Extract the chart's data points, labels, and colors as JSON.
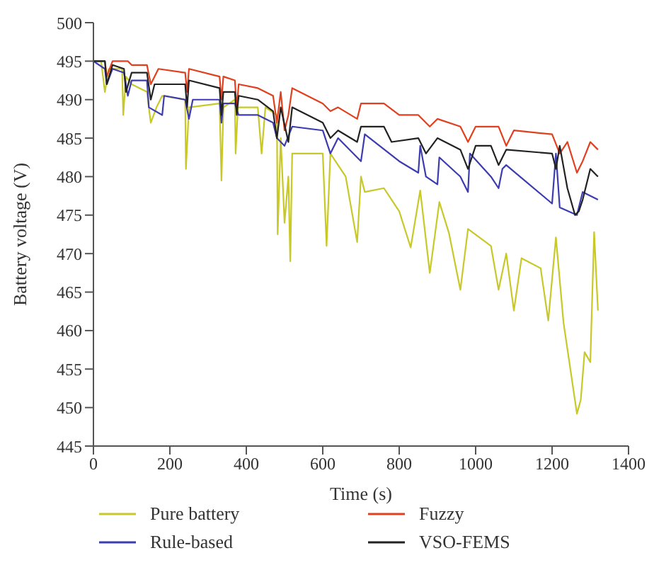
{
  "chart_data": {
    "type": "line",
    "xlabel": "Time (s)",
    "ylabel": "Battery voltage (V)",
    "xlim": [
      0,
      1400
    ],
    "xticks": [
      0,
      200,
      400,
      600,
      800,
      1000,
      1200,
      1400
    ],
    "ylim": [
      445,
      500
    ],
    "yticks": [
      445,
      450,
      455,
      460,
      465,
      470,
      475,
      480,
      485,
      490,
      495,
      500
    ],
    "grid": false,
    "legend": "bottom",
    "marker": "none",
    "series": [
      {
        "name": "Pure battery",
        "color": "#c8c828",
        "x": [
          0,
          20,
          30,
          40,
          75,
          78,
          85,
          100,
          140,
          150,
          165,
          180,
          240,
          242,
          250,
          330,
          335,
          340,
          370,
          372,
          378,
          430,
          440,
          450,
          480,
          482,
          490,
          500,
          510,
          515,
          520,
          600,
          610,
          620,
          660,
          690,
          700,
          710,
          760,
          800,
          830,
          855,
          880,
          905,
          930,
          960,
          980,
          1040,
          1060,
          1080,
          1100,
          1120,
          1170,
          1190,
          1210,
          1230,
          1265,
          1275,
          1285,
          1300,
          1310,
          1320
        ],
        "values": [
          495,
          495,
          491,
          494,
          494,
          488,
          493,
          492,
          491,
          487,
          489,
          490.5,
          490,
          481,
          489,
          489.5,
          479.5,
          489,
          490,
          483,
          489,
          489,
          483,
          489,
          488,
          472.5,
          485,
          474,
          480,
          469,
          483,
          483,
          471,
          483,
          480,
          471.5,
          480,
          478,
          478.5,
          475.5,
          470.8,
          478.2,
          467.5,
          476.7,
          472.7,
          465.3,
          473.2,
          471,
          465.3,
          470,
          462.6,
          469.4,
          468.1,
          461.3,
          472.1,
          461,
          449.2,
          451,
          457.2,
          455.9,
          472.8,
          462.6
        ]
      },
      {
        "name": "Fuzzy",
        "color": "#e0401e",
        "x": [
          0,
          30,
          35,
          50,
          90,
          100,
          140,
          150,
          170,
          240,
          245,
          250,
          330,
          335,
          340,
          370,
          375,
          380,
          430,
          470,
          480,
          490,
          500,
          510,
          520,
          600,
          620,
          640,
          690,
          700,
          760,
          800,
          850,
          880,
          900,
          960,
          980,
          1000,
          1060,
          1080,
          1100,
          1200,
          1220,
          1240,
          1265,
          1280,
          1300,
          1320
        ],
        "values": [
          495,
          495,
          493,
          495,
          495,
          494.5,
          494.5,
          492,
          494,
          493.5,
          491,
          494,
          493,
          490,
          493,
          492.5,
          489,
          492,
          491.5,
          490.5,
          487,
          491,
          486,
          488,
          491.5,
          489.5,
          488.5,
          489,
          487.5,
          489.5,
          489.5,
          488,
          488,
          486.5,
          487.5,
          486.5,
          484.5,
          486.5,
          486.5,
          484,
          486,
          485.5,
          483,
          484.5,
          480.5,
          482,
          484.5,
          483.5
        ]
      },
      {
        "name": "Rule-based",
        "color": "#3c3cb0",
        "x": [
          0,
          30,
          35,
          50,
          80,
          90,
          100,
          140,
          145,
          180,
          185,
          240,
          250,
          260,
          330,
          335,
          340,
          370,
          380,
          430,
          470,
          480,
          500,
          520,
          600,
          620,
          640,
          700,
          710,
          800,
          850,
          855,
          870,
          900,
          905,
          960,
          980,
          985,
          1040,
          1060,
          1070,
          1080,
          1200,
          1210,
          1220,
          1265,
          1280,
          1320
        ],
        "values": [
          495,
          494,
          492,
          494,
          493.5,
          490.5,
          492.5,
          492.5,
          489,
          488,
          490.5,
          490,
          487.5,
          490,
          490,
          487,
          489.5,
          489.5,
          488,
          488,
          487,
          485,
          484,
          486.5,
          486,
          483,
          485,
          482,
          485.5,
          482,
          480.5,
          484,
          480,
          479,
          482.5,
          480,
          478,
          483,
          480,
          478.5,
          481,
          481.5,
          476.5,
          483,
          476,
          475,
          478,
          477
        ]
      },
      {
        "name": "VSO-FEMS",
        "color": "#222222",
        "x": [
          0,
          30,
          35,
          50,
          80,
          85,
          100,
          140,
          150,
          160,
          240,
          245,
          250,
          330,
          335,
          340,
          370,
          375,
          380,
          430,
          470,
          480,
          490,
          510,
          520,
          600,
          620,
          640,
          690,
          700,
          760,
          780,
          850,
          870,
          900,
          960,
          980,
          1000,
          1040,
          1060,
          1080,
          1200,
          1210,
          1220,
          1240,
          1260,
          1270,
          1280,
          1300,
          1320
        ],
        "values": [
          495,
          495,
          492,
          494.5,
          494,
          491,
          493.5,
          493.5,
          490,
          492,
          492,
          489,
          492.5,
          491.5,
          488,
          491,
          491,
          488,
          490.5,
          490,
          488.5,
          485,
          489,
          484.5,
          489,
          487,
          485,
          486,
          484.5,
          486.5,
          486.5,
          484.5,
          485,
          483,
          485,
          483.5,
          481,
          484,
          484,
          481.5,
          483.5,
          483,
          481,
          484,
          478.5,
          475,
          475.5,
          477,
          481,
          480
        ]
      }
    ]
  }
}
